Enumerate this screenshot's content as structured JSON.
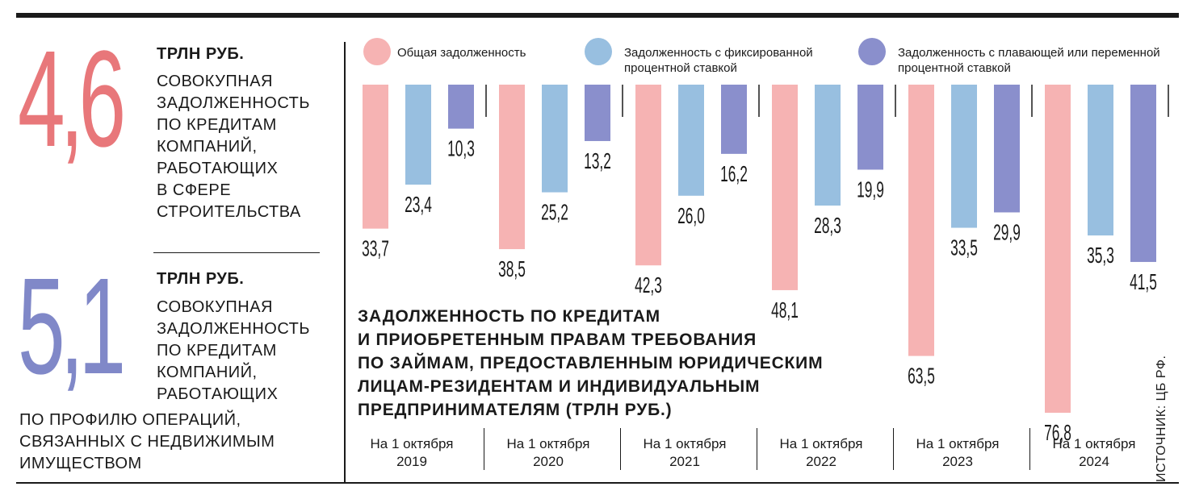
{
  "stats": [
    {
      "number": "4,6",
      "unit": "ТРЛН РУБ.",
      "description": "СОВОКУПНАЯ\nЗАДОЛЖЕННОСТЬ\nПО КРЕДИТАМ\nКОМПАНИЙ,\nРАБОТАЮЩИХ\nВ СФЕРЕ\nСТРОИТЕЛЬСТВА"
    },
    {
      "number": "5,1",
      "unit": "ТРЛН РУБ.",
      "description": "СОВОКУПНАЯ\nЗАДОЛЖЕННОСТЬ\nПО КРЕДИТАМ\nКОМПАНИЙ,\nРАБОТАЮЩИХ",
      "description_cont": "ПО ПРОФИЛЮ ОПЕРАЦИЙ,\nСВЯЗАННЫХ С НЕДВИЖИМЫМ\nИМУЩЕСТВОМ"
    }
  ],
  "source": "ИСТОЧНИК: ЦБ РФ.",
  "colors": {
    "series1": "#f6b3b3",
    "series2": "#98bfe0",
    "series3": "#8a8fcc",
    "big1": "#e8777a",
    "big2": "#8088c8"
  },
  "chart_data": {
    "type": "bar",
    "title": "ЗАДОЛЖЕННОСТЬ ПО КРЕДИТАМ\nИ ПРИОБРЕТЕННЫМ ПРАВАМ ТРЕБОВАНИЯ\nПО ЗАЙМАМ, ПРЕДОСТАВЛЕННЫМ ЮРИДИЧЕСКИМ\nЛИЦАМ-РЕЗИДЕНТАМ И ИНДИВИДУАЛЬНЫМ\nПРЕДПРИНИМАТЕЛЯМ (ТРЛН РУБ.)",
    "categories": [
      "На 1 октября\n2019",
      "На 1 октября\n2020",
      "На 1 октября\n2021",
      "На 1 октября\n2022",
      "На 1 октября\n2023",
      "На 1 октября\n2024"
    ],
    "series": [
      {
        "name": "Общая задолженность",
        "values": [
          33.7,
          38.5,
          42.3,
          48.1,
          63.5,
          76.8
        ],
        "labels": [
          "33,7",
          "38,5",
          "42,3",
          "48,1",
          "63,5",
          "76,8"
        ]
      },
      {
        "name": "Задолженность с фиксированной\nпроцентной ставкой",
        "values": [
          23.4,
          25.2,
          26.0,
          28.3,
          33.5,
          35.3
        ],
        "labels": [
          "23,4",
          "25,2",
          "26,0",
          "28,3",
          "33,5",
          "35,3"
        ]
      },
      {
        "name": "Задолженность с плавающей или переменной\nпроцентной ставкой",
        "values": [
          10.3,
          13.2,
          16.2,
          19.9,
          29.9,
          41.5
        ],
        "labels": [
          "10,3",
          "13,2",
          "16,2",
          "19,9",
          "29,9",
          "41,5"
        ]
      }
    ],
    "orientation": "bars hang downward from top baseline",
    "legend_position": "top",
    "grid": false
  }
}
